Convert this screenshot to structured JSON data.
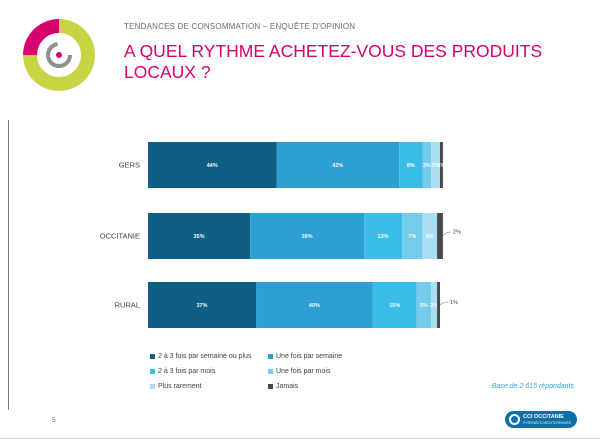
{
  "header": {
    "subtitle": "TENDANCES DE CONSOMMATION – ENQUÊTE D'OPINION",
    "title": "A QUEL RYTHME ACHETEZ-VOUS DES PRODUITS LOCAUX ?"
  },
  "colors": {
    "title": "#d6006f",
    "logo_ring_outer": "#c7d444",
    "logo_ring_inner": "#d6006f",
    "logo_mark": "#8f8f8f"
  },
  "chart_data": {
    "type": "bar",
    "orientation": "horizontal",
    "stacked": true,
    "categories": [
      "GERS",
      "OCCITANIE",
      "RURAL"
    ],
    "series": [
      {
        "name": "2 à 3 fois par semaine ou plus",
        "color": "#0f5e86",
        "values": [
          44,
          35,
          37
        ],
        "labels": [
          "44%",
          "35%",
          "37%"
        ]
      },
      {
        "name": "Une fois par semaine",
        "color": "#2e9fd1",
        "values": [
          42,
          39,
          40
        ],
        "labels": [
          "42%",
          "39%",
          "40%"
        ]
      },
      {
        "name": "2 à 3 fois par mois",
        "color": "#3cbde8",
        "values": [
          8,
          13,
          15
        ],
        "labels": [
          "8%",
          "13%",
          "15%"
        ]
      },
      {
        "name": "Une fois par mois",
        "color": "#74ccec",
        "values": [
          3,
          7,
          5
        ],
        "labels": [
          "3%",
          "7%",
          "5%"
        ]
      },
      {
        "name": "Plus rarement",
        "color": "#a9dff3",
        "values": [
          3,
          5,
          2
        ],
        "labels": [
          "3%",
          "5%",
          "2%"
        ]
      },
      {
        "name": "Jamais",
        "color": "#4a4a4a",
        "values": [
          1,
          2,
          1
        ],
        "labels": [
          "1%",
          "2%",
          "1%"
        ]
      }
    ],
    "xlim": [
      0,
      100
    ],
    "grid": false,
    "legend_position": "bottom"
  },
  "footer": {
    "base_note": "Base de 2 615 répondants",
    "page_number": "5",
    "brand_name": "CCI OCCITANIE",
    "brand_sub": "PYRÉNÉES-MÉDITERRANÉE"
  }
}
